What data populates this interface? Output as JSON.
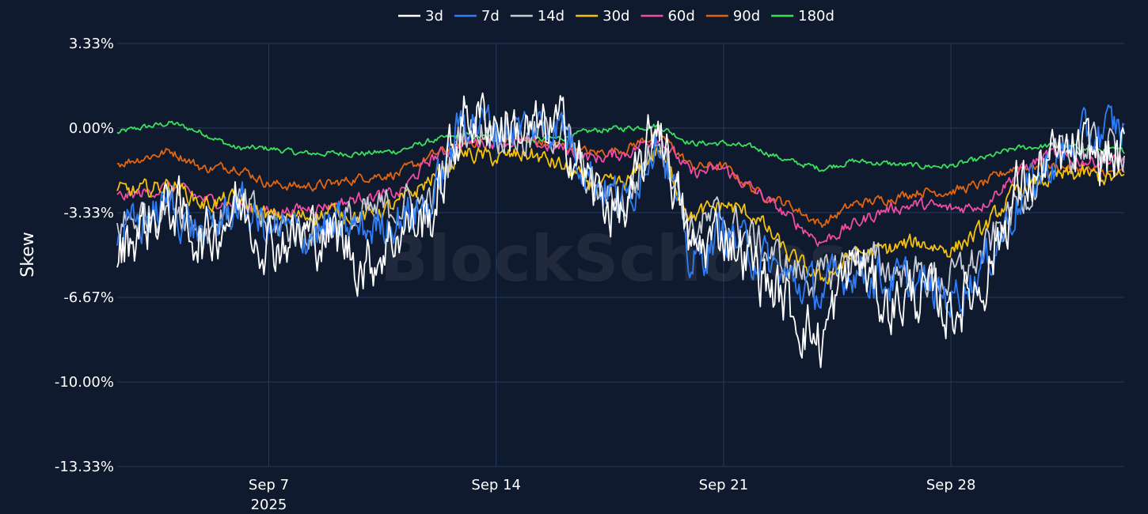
{
  "watermark": "BlockScholes",
  "colors": {
    "background": "#101a2e",
    "grid": "#243a5e",
    "text": "#ffffff"
  },
  "chart_data": {
    "type": "line",
    "ylabel": "Skew",
    "xlabel": "",
    "y_unit": "%",
    "x_range": [
      "2025-09-02T08:00",
      "2025-10-03T08:00"
    ],
    "ylim": [
      -13.33,
      3.33
    ],
    "y_ticks": [
      3.33,
      0.0,
      -3.33,
      -6.67,
      -10.0,
      -13.33
    ],
    "y_tick_labels": [
      "3.33%",
      "0.00%",
      "-3.33%",
      "-6.67%",
      "-10.00%",
      "-13.33%"
    ],
    "x_ticks": [
      "2025-09-07",
      "2025-09-14",
      "2025-09-21",
      "2025-09-28"
    ],
    "x_tick_labels": [
      [
        "Sep 7",
        "2025"
      ],
      [
        "Sep 14"
      ],
      [
        "Sep 21"
      ],
      [
        "Sep 28"
      ]
    ],
    "grid": true,
    "legend_position": "top-center",
    "series": [
      {
        "name": "3d",
        "color": "#ffffff",
        "x": [
          "2025-09-02",
          "2025-09-03",
          "2025-09-04",
          "2025-09-05",
          "2025-09-06",
          "2025-09-07",
          "2025-09-08",
          "2025-09-09",
          "2025-09-10",
          "2025-09-11",
          "2025-09-12",
          "2025-09-13",
          "2025-09-14",
          "2025-09-15",
          "2025-09-16",
          "2025-09-17",
          "2025-09-18",
          "2025-09-19",
          "2025-09-20",
          "2025-09-21",
          "2025-09-22",
          "2025-09-23",
          "2025-09-24",
          "2025-09-25",
          "2025-09-26",
          "2025-09-27",
          "2025-09-28",
          "2025-09-29",
          "2025-09-30",
          "2025-10-01",
          "2025-10-02",
          "2025-10-03"
        ],
        "values": [
          -5.5,
          -4.0,
          -3.0,
          -4.5,
          -3.0,
          -4.5,
          -4.2,
          -4.2,
          -5.5,
          -4.0,
          -3.5,
          0.5,
          0.3,
          -0.2,
          0.0,
          -2.5,
          -3.5,
          0.5,
          -5.0,
          -4.0,
          -5.5,
          -7.0,
          -8.5,
          -5.0,
          -7.0,
          -6.5,
          -7.2,
          -6.0,
          -2.5,
          -1.5,
          -1.0,
          -1.2
        ],
        "jitter": 1.2
      },
      {
        "name": "7d",
        "color": "#2f7df6",
        "x": [
          "2025-09-02",
          "2025-09-03",
          "2025-09-04",
          "2025-09-05",
          "2025-09-06",
          "2025-09-07",
          "2025-09-08",
          "2025-09-09",
          "2025-09-10",
          "2025-09-11",
          "2025-09-12",
          "2025-09-13",
          "2025-09-14",
          "2025-09-15",
          "2025-09-16",
          "2025-09-17",
          "2025-09-18",
          "2025-09-19",
          "2025-09-20",
          "2025-09-21",
          "2025-09-22",
          "2025-09-23",
          "2025-09-24",
          "2025-09-25",
          "2025-09-26",
          "2025-09-27",
          "2025-09-28",
          "2025-09-29",
          "2025-09-30",
          "2025-10-01",
          "2025-10-02",
          "2025-10-03"
        ],
        "values": [
          -4.5,
          -3.8,
          -3.0,
          -4.3,
          -3.0,
          -4.0,
          -4.2,
          -4.0,
          -4.0,
          -3.5,
          -3.0,
          0.5,
          0.0,
          0.0,
          0.2,
          -2.0,
          -3.0,
          0.0,
          -5.5,
          -4.0,
          -5.0,
          -6.0,
          -6.5,
          -5.5,
          -6.0,
          -6.2,
          -6.7,
          -5.5,
          -3.0,
          -1.5,
          -0.5,
          0.0
        ],
        "jitter": 0.9
      },
      {
        "name": "14d",
        "color": "#c8ccd4",
        "x": [
          "2025-09-02",
          "2025-09-03",
          "2025-09-04",
          "2025-09-05",
          "2025-09-06",
          "2025-09-07",
          "2025-09-08",
          "2025-09-09",
          "2025-09-10",
          "2025-09-11",
          "2025-09-12",
          "2025-09-13",
          "2025-09-14",
          "2025-09-15",
          "2025-09-16",
          "2025-09-17",
          "2025-09-18",
          "2025-09-19",
          "2025-09-20",
          "2025-09-21",
          "2025-09-22",
          "2025-09-23",
          "2025-09-24",
          "2025-09-25",
          "2025-09-26",
          "2025-09-27",
          "2025-09-28",
          "2025-09-29",
          "2025-09-30",
          "2025-10-01",
          "2025-10-02",
          "2025-10-03"
        ],
        "values": [
          -4.0,
          -3.5,
          -2.8,
          -4.0,
          -3.0,
          -3.8,
          -4.0,
          -3.8,
          -3.5,
          -3.0,
          -3.0,
          0.0,
          0.0,
          -0.5,
          0.0,
          -2.5,
          -3.0,
          0.0,
          -4.0,
          -3.5,
          -4.5,
          -5.5,
          -6.0,
          -5.0,
          -5.5,
          -5.8,
          -6.0,
          -5.0,
          -3.0,
          -1.5,
          -0.8,
          -0.8
        ],
        "jitter": 0.8
      },
      {
        "name": "30d",
        "color": "#f4c20d",
        "x": [
          "2025-09-02",
          "2025-09-03",
          "2025-09-04",
          "2025-09-05",
          "2025-09-06",
          "2025-09-07",
          "2025-09-08",
          "2025-09-09",
          "2025-09-10",
          "2025-09-11",
          "2025-09-12",
          "2025-09-13",
          "2025-09-14",
          "2025-09-15",
          "2025-09-16",
          "2025-09-17",
          "2025-09-18",
          "2025-09-19",
          "2025-09-20",
          "2025-09-21",
          "2025-09-22",
          "2025-09-23",
          "2025-09-24",
          "2025-09-25",
          "2025-09-26",
          "2025-09-27",
          "2025-09-28",
          "2025-09-29",
          "2025-09-30",
          "2025-10-01",
          "2025-10-02",
          "2025-10-03"
        ],
        "values": [
          -2.5,
          -2.5,
          -2.2,
          -3.0,
          -2.8,
          -3.5,
          -3.5,
          -3.3,
          -3.5,
          -3.0,
          -2.0,
          -1.0,
          -1.2,
          -1.0,
          -1.5,
          -2.3,
          -2.2,
          -0.8,
          -3.5,
          -3.0,
          -3.5,
          -5.0,
          -6.0,
          -5.0,
          -4.8,
          -4.5,
          -4.8,
          -4.0,
          -2.5,
          -2.0,
          -1.8,
          -2.0
        ],
        "jitter": 0.35
      },
      {
        "name": "60d",
        "color": "#ee4da3",
        "x": [
          "2025-09-02",
          "2025-09-03",
          "2025-09-04",
          "2025-09-05",
          "2025-09-06",
          "2025-09-07",
          "2025-09-08",
          "2025-09-09",
          "2025-09-10",
          "2025-09-11",
          "2025-09-12",
          "2025-09-13",
          "2025-09-14",
          "2025-09-15",
          "2025-09-16",
          "2025-09-17",
          "2025-09-18",
          "2025-09-19",
          "2025-09-20",
          "2025-09-21",
          "2025-09-22",
          "2025-09-23",
          "2025-09-24",
          "2025-09-25",
          "2025-09-26",
          "2025-09-27",
          "2025-09-28",
          "2025-09-29",
          "2025-09-30",
          "2025-10-01",
          "2025-10-02",
          "2025-10-03"
        ],
        "values": [
          -2.8,
          -2.6,
          -2.3,
          -2.8,
          -3.0,
          -3.3,
          -3.2,
          -3.0,
          -2.7,
          -2.6,
          -1.2,
          -0.6,
          -0.5,
          -0.6,
          -0.8,
          -1.2,
          -1.0,
          -0.3,
          -1.8,
          -1.6,
          -2.5,
          -3.5,
          -4.5,
          -3.8,
          -3.2,
          -3.0,
          -3.2,
          -3.0,
          -1.8,
          -1.0,
          -1.3,
          -1.3
        ],
        "jitter": 0.25
      },
      {
        "name": "90d",
        "color": "#e2650f",
        "x": [
          "2025-09-02",
          "2025-09-03",
          "2025-09-04",
          "2025-09-05",
          "2025-09-06",
          "2025-09-07",
          "2025-09-08",
          "2025-09-09",
          "2025-09-10",
          "2025-09-11",
          "2025-09-12",
          "2025-09-13",
          "2025-09-14",
          "2025-09-15",
          "2025-09-16",
          "2025-09-17",
          "2025-09-18",
          "2025-09-19",
          "2025-09-20",
          "2025-09-21",
          "2025-09-22",
          "2025-09-23",
          "2025-09-24",
          "2025-09-25",
          "2025-09-26",
          "2025-09-27",
          "2025-09-28",
          "2025-09-29",
          "2025-09-30",
          "2025-10-01",
          "2025-10-02",
          "2025-10-03"
        ],
        "values": [
          -1.5,
          -1.2,
          -0.9,
          -1.6,
          -1.5,
          -2.2,
          -2.3,
          -2.2,
          -1.9,
          -1.8,
          -1.1,
          -0.6,
          -0.4,
          -0.5,
          -0.7,
          -1.0,
          -0.8,
          -0.2,
          -1.5,
          -1.5,
          -2.5,
          -3.0,
          -3.8,
          -3.0,
          -2.8,
          -2.5,
          -2.5,
          -2.2,
          -1.5,
          -1.5,
          -1.6,
          -1.8
        ],
        "jitter": 0.2
      },
      {
        "name": "180d",
        "color": "#3ae05c",
        "x": [
          "2025-09-02",
          "2025-09-03",
          "2025-09-04",
          "2025-09-05",
          "2025-09-06",
          "2025-09-07",
          "2025-09-08",
          "2025-09-09",
          "2025-09-10",
          "2025-09-11",
          "2025-09-12",
          "2025-09-13",
          "2025-09-14",
          "2025-09-15",
          "2025-09-16",
          "2025-09-17",
          "2025-09-18",
          "2025-09-19",
          "2025-09-20",
          "2025-09-21",
          "2025-09-22",
          "2025-09-23",
          "2025-09-24",
          "2025-09-25",
          "2025-09-26",
          "2025-09-27",
          "2025-09-28",
          "2025-09-29",
          "2025-09-30",
          "2025-10-01",
          "2025-10-02",
          "2025-10-03"
        ],
        "values": [
          -0.3,
          0.0,
          0.2,
          -0.2,
          -0.8,
          -0.8,
          -1.0,
          -1.0,
          -1.0,
          -0.9,
          -0.5,
          -0.3,
          -0.4,
          -0.5,
          -0.4,
          -0.1,
          0.0,
          0.1,
          -0.6,
          -0.6,
          -0.8,
          -1.3,
          -1.6,
          -1.3,
          -1.4,
          -1.5,
          -1.5,
          -1.2,
          -0.8,
          -0.7,
          -0.8,
          -0.9
        ],
        "jitter": 0.12
      }
    ]
  }
}
